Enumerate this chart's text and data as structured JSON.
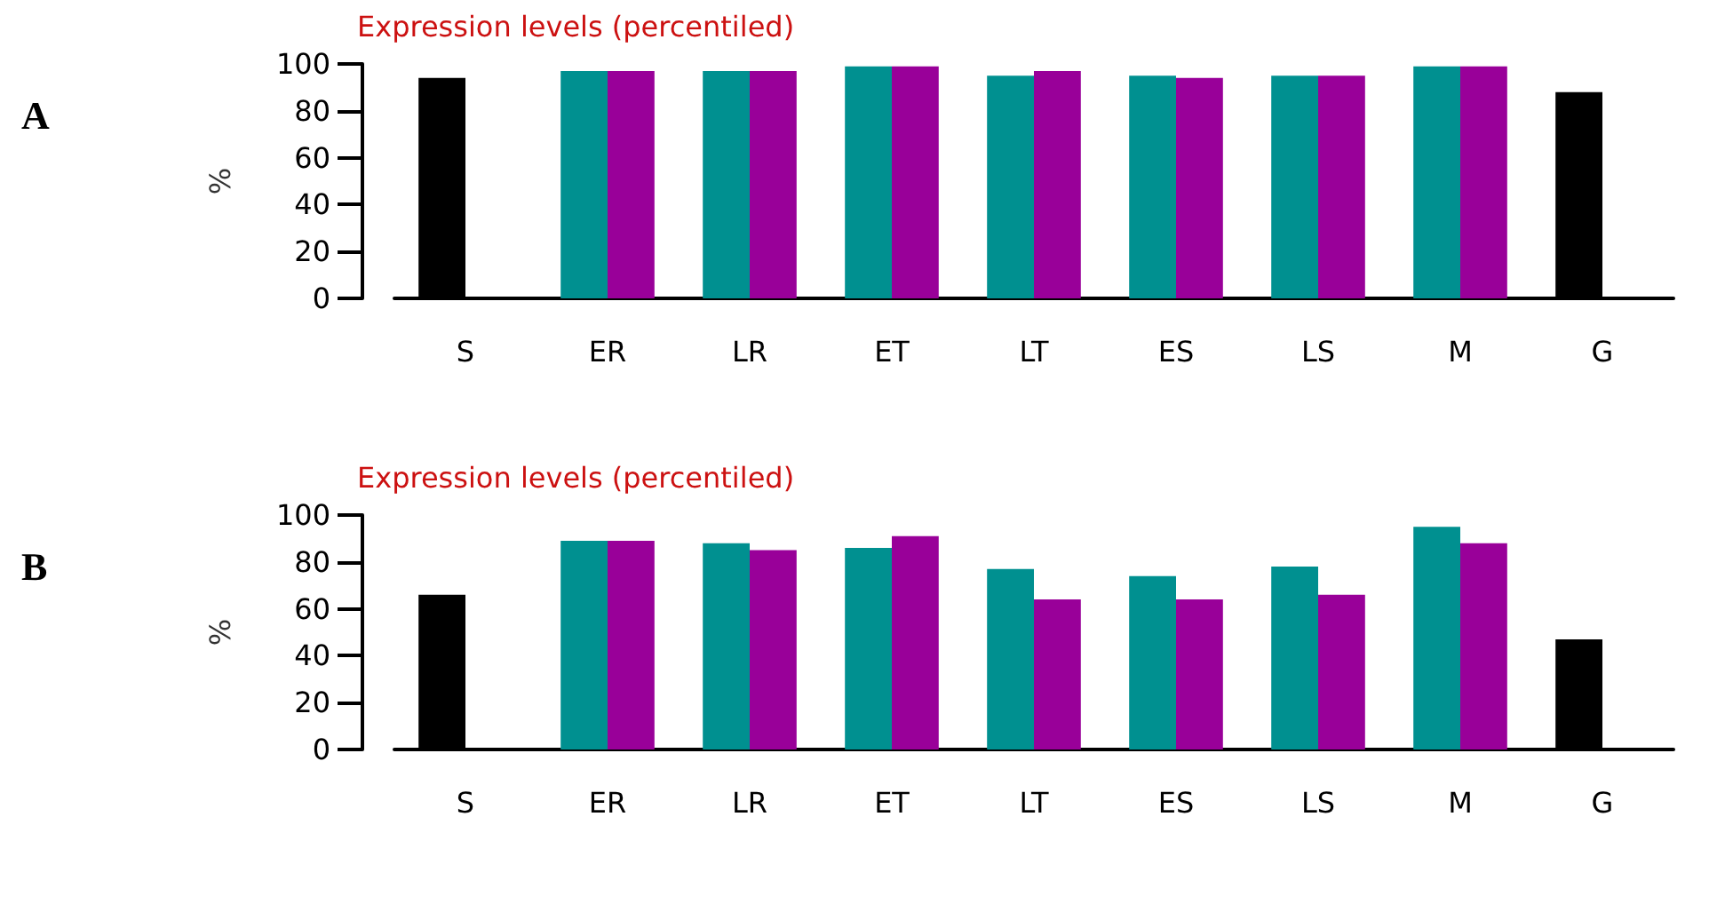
{
  "chart_data": [
    {
      "type": "bar",
      "title": "Expression levels (percentiled)",
      "ylabel": "%",
      "annotations": [
        "A"
      ],
      "categories": [
        "S",
        "ER",
        "LR",
        "ET",
        "LT",
        "ES",
        "LS",
        "M",
        "G"
      ],
      "series": [
        {
          "color": "#009090",
          "colors": [
            "#000000",
            "#009090",
            "#009090",
            "#009090",
            "#009090",
            "#009090",
            "#009090",
            "#009090",
            "#000000"
          ],
          "values": [
            94,
            97,
            97,
            99,
            95,
            95,
            95,
            99,
            88
          ]
        },
        {
          "color": "#990099",
          "values": [
            null,
            97,
            97,
            99,
            97,
            94,
            95,
            99,
            null
          ]
        }
      ],
      "ylim": [
        0,
        100
      ],
      "yticks": [
        0,
        20,
        40,
        60,
        80,
        100
      ],
      "grid": false
    },
    {
      "type": "bar",
      "title": "Expression levels (percentiled)",
      "ylabel": "%",
      "annotations": [
        "B"
      ],
      "categories": [
        "S",
        "ER",
        "LR",
        "ET",
        "LT",
        "ES",
        "LS",
        "M",
        "G"
      ],
      "series": [
        {
          "color": "#009090",
          "colors": [
            "#000000",
            "#009090",
            "#009090",
            "#009090",
            "#009090",
            "#009090",
            "#009090",
            "#009090",
            "#000000"
          ],
          "values": [
            66,
            89,
            88,
            86,
            77,
            74,
            78,
            95,
            47
          ]
        },
        {
          "color": "#990099",
          "values": [
            null,
            89,
            85,
            91,
            64,
            64,
            66,
            88,
            null
          ]
        }
      ],
      "ylim": [
        0,
        100
      ],
      "yticks": [
        0,
        20,
        40,
        60,
        80,
        100
      ],
      "grid": false
    }
  ]
}
